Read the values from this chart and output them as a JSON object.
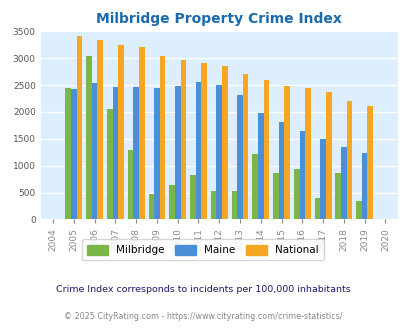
{
  "title": "Milbridge Property Crime Index",
  "years": [
    2004,
    2005,
    2006,
    2007,
    2008,
    2009,
    2010,
    2011,
    2012,
    2013,
    2014,
    2015,
    2016,
    2017,
    2018,
    2019,
    2020
  ],
  "milbridge": [
    0,
    2450,
    3050,
    2050,
    1300,
    470,
    650,
    820,
    530,
    530,
    1220,
    870,
    930,
    400,
    870,
    340,
    0
  ],
  "maine": [
    0,
    2430,
    2530,
    2460,
    2470,
    2440,
    2490,
    2560,
    2510,
    2310,
    1990,
    1820,
    1640,
    1500,
    1340,
    1230,
    0
  ],
  "national": [
    0,
    3410,
    3330,
    3250,
    3200,
    3040,
    2960,
    2910,
    2850,
    2710,
    2590,
    2490,
    2450,
    2380,
    2210,
    2110,
    0
  ],
  "milbridge_color": "#7ab648",
  "maine_color": "#4a90d9",
  "national_color": "#f5a623",
  "bg_color": "#ddeeff",
  "title_color": "#1a6aac",
  "ylabel_max": 3500,
  "yticks": [
    0,
    500,
    1000,
    1500,
    2000,
    2500,
    3000,
    3500
  ],
  "legend_labels": [
    "Milbridge",
    "Maine",
    "National"
  ],
  "footnote1": "Crime Index corresponds to incidents per 100,000 inhabitants",
  "footnote2": "© 2025 CityRating.com - https://www.cityrating.com/crime-statistics/",
  "footnote1_color": "#1a1a6a",
  "footnote2_color": "#888888"
}
